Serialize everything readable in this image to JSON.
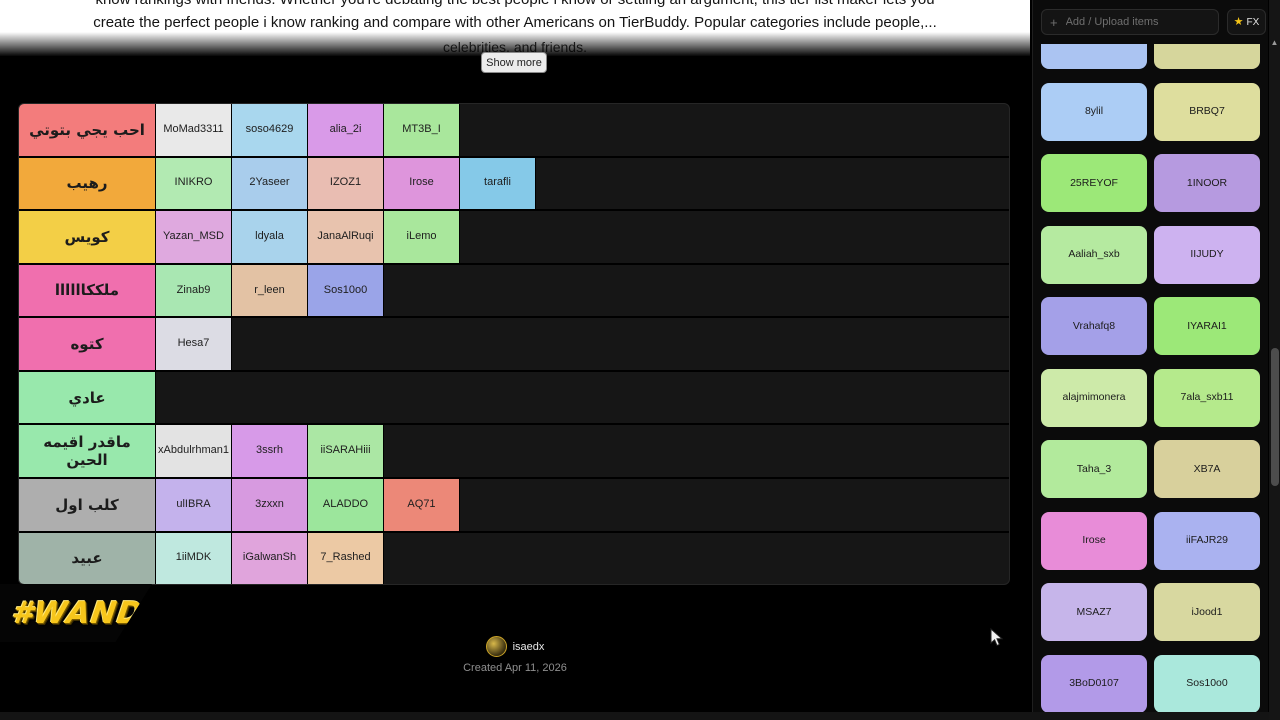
{
  "header": {
    "line1": "know rankings with friends. Whether you're debating the best people i know or settling an argument, this tier list maker lets you",
    "line2": "create the perfect people i know ranking and compare with other Americans on TierBuddy. Popular categories include people,...",
    "line3": "celebrities, and friends.",
    "show_more_label": "Show more"
  },
  "tier_list": {
    "tiers": [
      {
        "label": "احب يجي بتوتي",
        "color": "#f37c7c",
        "items": [
          {
            "name": "MoMad3311",
            "color": "#e9e9e9"
          },
          {
            "name": "soso4629",
            "color": "#a9d7ee"
          },
          {
            "name": "alia_2i",
            "color": "#d99ae8"
          },
          {
            "name": "MT3B_I",
            "color": "#a9e79c"
          }
        ]
      },
      {
        "label": "رهيب",
        "color": "#f2a93b",
        "items": [
          {
            "name": "INIKRO",
            "color": "#b2eab2"
          },
          {
            "name": "2Yaseer",
            "color": "#a9cdec"
          },
          {
            "name": "IZOZ1",
            "color": "#e9bdb2"
          },
          {
            "name": "Irose",
            "color": "#de95dc"
          },
          {
            "name": "tarafli",
            "color": "#85c9e8"
          }
        ]
      },
      {
        "label": "كويس",
        "color": "#f3cf46",
        "items": [
          {
            "name": "Yazan_MSD",
            "color": "#dfa9df"
          },
          {
            "name": "ldyala",
            "color": "#a9d3ec"
          },
          {
            "name": "JanaAlRuqi",
            "color": "#e8c3ae"
          },
          {
            "name": "iLemo",
            "color": "#a9e79c"
          }
        ]
      },
      {
        "label": "ملككاااااا",
        "color": "#f06fae",
        "items": [
          {
            "name": "Zinab9",
            "color": "#a9e7b2"
          },
          {
            "name": "r_leen",
            "color": "#e3c2a4"
          },
          {
            "name": "Sos10o0",
            "color": "#9aa4e8"
          }
        ]
      },
      {
        "label": "كتوه",
        "color": "#f06fae",
        "items": [
          {
            "name": "Hesa7",
            "color": "#dcdce4"
          }
        ]
      },
      {
        "label": "عادي",
        "color": "#98e8ac",
        "items": []
      },
      {
        "label": "ماقدر اقيمه الحين",
        "color": "#98e8ac",
        "items": [
          {
            "name": "xAbdulrhman1",
            "color": "#e3e3e3"
          },
          {
            "name": "3ssrh",
            "color": "#d79ae8"
          },
          {
            "name": "iiSARAHiii",
            "color": "#abe7a4"
          }
        ]
      },
      {
        "label": "كلب اول",
        "color": "#aeaeae",
        "items": [
          {
            "name": "ulIBRA",
            "color": "#c4b2ec"
          },
          {
            "name": "3zxxn",
            "color": "#d79ae0"
          },
          {
            "name": "ALADDO",
            "color": "#9ce69c"
          },
          {
            "name": "AQ71",
            "color": "#ec8878"
          }
        ]
      },
      {
        "label": "عبيد",
        "color": "#9fb3a8",
        "items": [
          {
            "name": "1iiMDK",
            "color": "#bfe8df"
          },
          {
            "name": "iGalwanSh",
            "color": "#e0a4dc"
          },
          {
            "name": "7_Rashed",
            "color": "#ecc9a4"
          }
        ]
      }
    ]
  },
  "sidebar": {
    "add_input_placeholder": "Add / Upload items",
    "plus_icon": "+",
    "star_icon": "★",
    "fx_button_label": "FX",
    "partial_items": [
      {
        "name": "",
        "color": "#abc4f2"
      },
      {
        "name": "",
        "color": "#d6d69c"
      }
    ],
    "items": [
      {
        "name": "8ylil",
        "color": "#accdf5"
      },
      {
        "name": "BRBQ7",
        "color": "#dede9e"
      },
      {
        "name": "25REYOF",
        "color": "#9ce878"
      },
      {
        "name": "1INOOR",
        "color": "#b69ae0"
      },
      {
        "name": "Aaliah_sxb",
        "color": "#b5eaa0"
      },
      {
        "name": "IIJUDY",
        "color": "#cdb2f0"
      },
      {
        "name": "Vrahafq8",
        "color": "#a4a0e8"
      },
      {
        "name": "IYARAI1",
        "color": "#9ce878"
      },
      {
        "name": "alajmimonera",
        "color": "#cdeaa9"
      },
      {
        "name": "7ala_sxb11",
        "color": "#b5ea8c"
      },
      {
        "name": "Taha_3",
        "color": "#b2ea9c"
      },
      {
        "name": "XB7A",
        "color": "#d8d09c"
      },
      {
        "name": "Irose",
        "color": "#e88cd8"
      },
      {
        "name": "iiFAJR29",
        "color": "#aab2f0"
      },
      {
        "name": "MSAZ7",
        "color": "#c6b5ea"
      },
      {
        "name": "iJood1",
        "color": "#d8d8a0"
      },
      {
        "name": "3BoD0107",
        "color": "#b29ae8"
      },
      {
        "name": "Sos10o0",
        "color": "#aae8dc"
      }
    ]
  },
  "footer": {
    "logo_text": "#WAND",
    "username": "isaedx",
    "created_text": "Created Apr 11, 2026"
  }
}
